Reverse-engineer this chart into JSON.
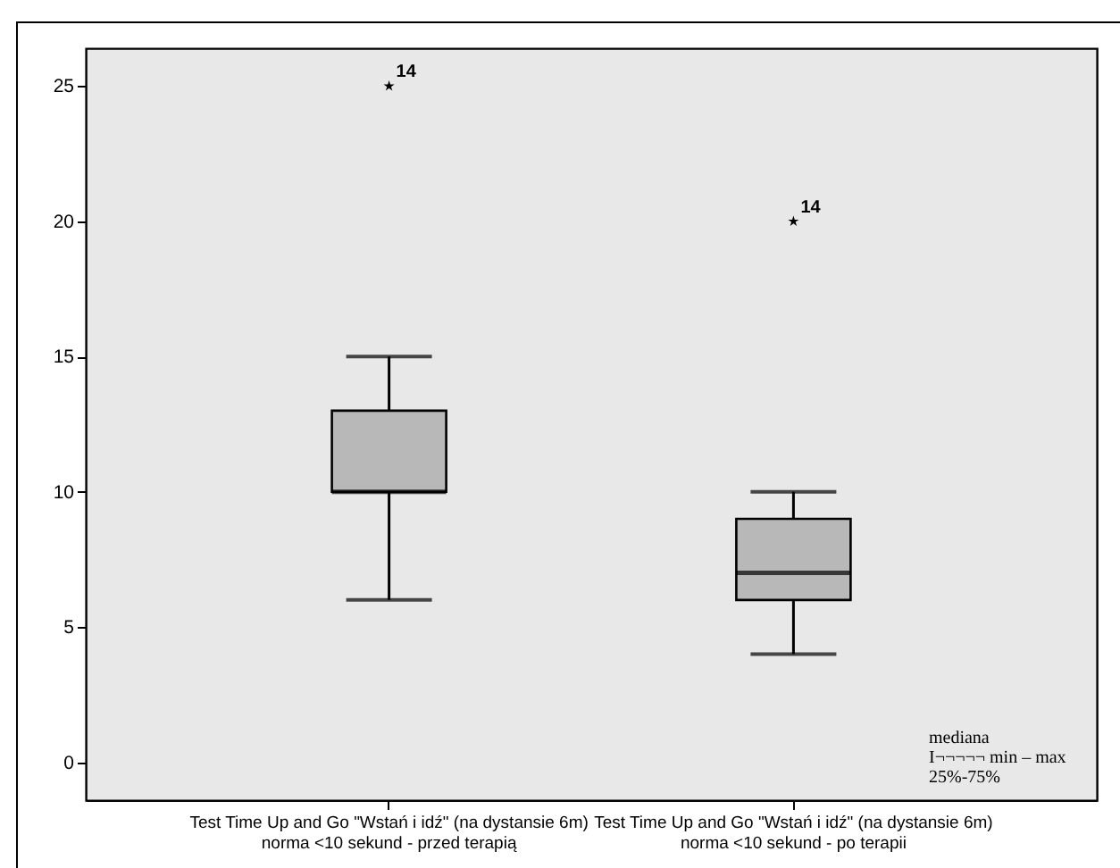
{
  "chart_data": {
    "type": "box",
    "categories": [
      "Test Time Up and Go \"Wstań i idź\" (na dystansie 6m)\nnorma <10 sekund - przed terapią",
      "Test Time Up and Go \"Wstań i idź\" (na dystansie 6m)\nnorma <10 sekund - po terapii"
    ],
    "series": [
      {
        "color": "#b8b8b8",
        "boxes": [
          {
            "low": 6,
            "q1": 10,
            "median": 10,
            "q3": 13,
            "high": 15,
            "outliers": [
              25
            ]
          },
          {
            "low": 4,
            "q1": 6,
            "median": 7,
            "q3": 9,
            "high": 10,
            "outliers": [
              20
            ]
          }
        ]
      }
    ],
    "ylim": [
      -1.4,
      26.4
    ],
    "yticks": [
      0,
      5,
      10,
      15,
      20,
      25
    ],
    "grid": false,
    "marker": "star",
    "annotations": [
      "14",
      "14",
      "mediana",
      "I¬¬¬¬¬ min – max",
      "25%-75%"
    ]
  }
}
